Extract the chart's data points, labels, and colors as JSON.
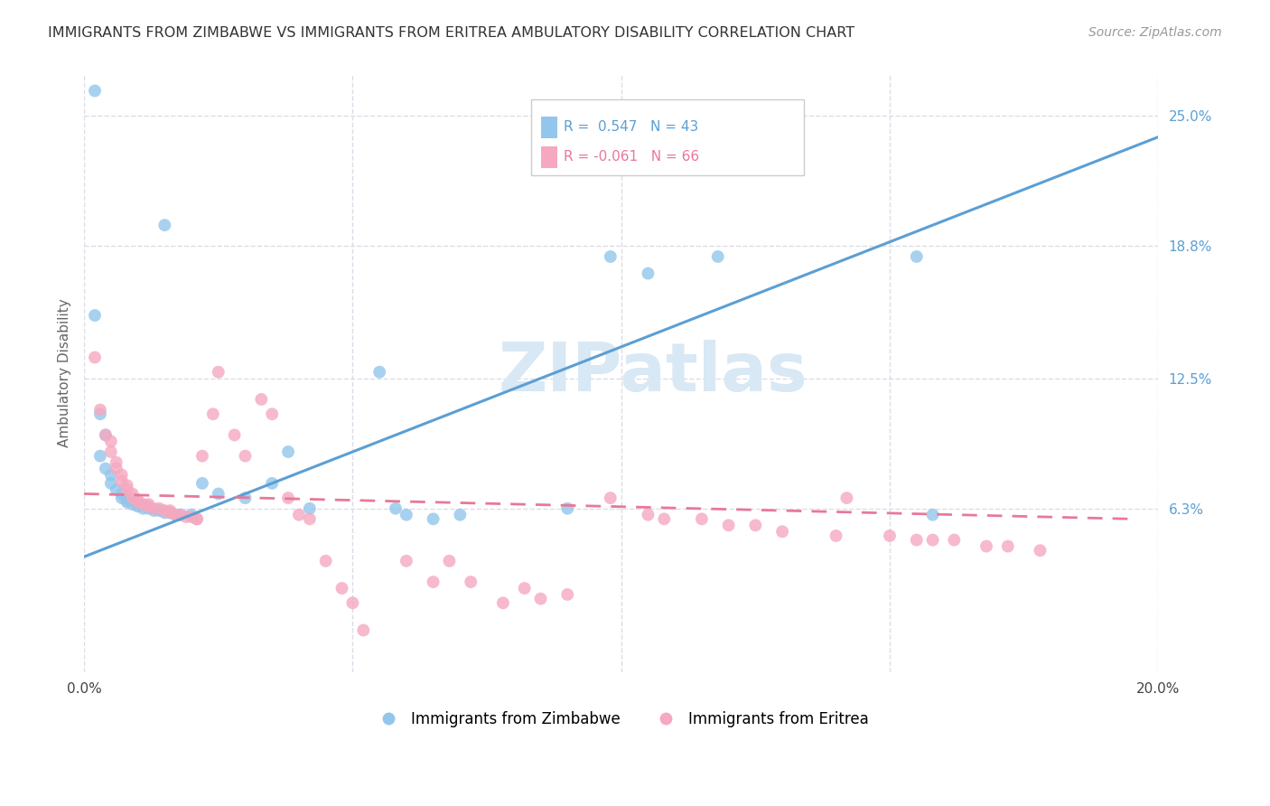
{
  "title": "IMMIGRANTS FROM ZIMBABWE VS IMMIGRANTS FROM ERITREA AMBULATORY DISABILITY CORRELATION CHART",
  "source": "Source: ZipAtlas.com",
  "ylabel": "Ambulatory Disability",
  "xlim": [
    0.0,
    0.2
  ],
  "ylim": [
    -0.015,
    0.27
  ],
  "xtick_positions": [
    0.0,
    0.05,
    0.1,
    0.15,
    0.2
  ],
  "xticklabels": [
    "0.0%",
    "",
    "",
    "",
    "20.0%"
  ],
  "yticks_right": [
    0.063,
    0.125,
    0.188,
    0.25
  ],
  "ytick_labels_right": [
    "6.3%",
    "12.5%",
    "18.8%",
    "25.0%"
  ],
  "color_zimbabwe": "#93C6EC",
  "color_eritrea": "#F5A8C0",
  "color_line_zimbabwe": "#5B9FD4",
  "color_line_eritrea": "#E87898",
  "watermark": "ZIPatlas",
  "watermark_color": "#D8E8F4",
  "background_color": "#ffffff",
  "grid_color": "#DCDCE8",
  "zimbabwe_scatter": [
    [
      0.002,
      0.262
    ],
    [
      0.015,
      0.198
    ],
    [
      0.002,
      0.155
    ],
    [
      0.003,
      0.108
    ],
    [
      0.004,
      0.098
    ],
    [
      0.003,
      0.088
    ],
    [
      0.004,
      0.082
    ],
    [
      0.005,
      0.079
    ],
    [
      0.005,
      0.075
    ],
    [
      0.006,
      0.072
    ],
    [
      0.007,
      0.07
    ],
    [
      0.007,
      0.068
    ],
    [
      0.008,
      0.067
    ],
    [
      0.008,
      0.066
    ],
    [
      0.009,
      0.065
    ],
    [
      0.01,
      0.065
    ],
    [
      0.01,
      0.064
    ],
    [
      0.011,
      0.063
    ],
    [
      0.012,
      0.063
    ],
    [
      0.013,
      0.062
    ],
    [
      0.014,
      0.062
    ],
    [
      0.015,
      0.061
    ],
    [
      0.016,
      0.061
    ],
    [
      0.017,
      0.06
    ],
    [
      0.018,
      0.06
    ],
    [
      0.02,
      0.06
    ],
    [
      0.022,
      0.075
    ],
    [
      0.025,
      0.07
    ],
    [
      0.03,
      0.068
    ],
    [
      0.035,
      0.075
    ],
    [
      0.038,
      0.09
    ],
    [
      0.042,
      0.063
    ],
    [
      0.055,
      0.128
    ],
    [
      0.058,
      0.063
    ],
    [
      0.06,
      0.06
    ],
    [
      0.065,
      0.058
    ],
    [
      0.07,
      0.06
    ],
    [
      0.09,
      0.063
    ],
    [
      0.098,
      0.183
    ],
    [
      0.105,
      0.175
    ],
    [
      0.118,
      0.183
    ],
    [
      0.155,
      0.183
    ],
    [
      0.158,
      0.06
    ]
  ],
  "eritrea_scatter": [
    [
      0.002,
      0.135
    ],
    [
      0.003,
      0.11
    ],
    [
      0.004,
      0.098
    ],
    [
      0.005,
      0.095
    ],
    [
      0.005,
      0.09
    ],
    [
      0.006,
      0.085
    ],
    [
      0.006,
      0.082
    ],
    [
      0.007,
      0.079
    ],
    [
      0.007,
      0.076
    ],
    [
      0.008,
      0.074
    ],
    [
      0.008,
      0.072
    ],
    [
      0.009,
      0.07
    ],
    [
      0.009,
      0.068
    ],
    [
      0.01,
      0.067
    ],
    [
      0.01,
      0.066
    ],
    [
      0.011,
      0.065
    ],
    [
      0.012,
      0.065
    ],
    [
      0.012,
      0.064
    ],
    [
      0.013,
      0.063
    ],
    [
      0.014,
      0.063
    ],
    [
      0.015,
      0.062
    ],
    [
      0.016,
      0.062
    ],
    [
      0.016,
      0.061
    ],
    [
      0.017,
      0.06
    ],
    [
      0.018,
      0.06
    ],
    [
      0.019,
      0.059
    ],
    [
      0.02,
      0.059
    ],
    [
      0.021,
      0.058
    ],
    [
      0.021,
      0.058
    ],
    [
      0.022,
      0.088
    ],
    [
      0.024,
      0.108
    ],
    [
      0.025,
      0.128
    ],
    [
      0.028,
      0.098
    ],
    [
      0.03,
      0.088
    ],
    [
      0.033,
      0.115
    ],
    [
      0.035,
      0.108
    ],
    [
      0.038,
      0.068
    ],
    [
      0.04,
      0.06
    ],
    [
      0.042,
      0.058
    ],
    [
      0.045,
      0.038
    ],
    [
      0.048,
      0.025
    ],
    [
      0.05,
      0.018
    ],
    [
      0.052,
      0.005
    ],
    [
      0.06,
      0.038
    ],
    [
      0.065,
      0.028
    ],
    [
      0.068,
      0.038
    ],
    [
      0.072,
      0.028
    ],
    [
      0.078,
      0.018
    ],
    [
      0.082,
      0.025
    ],
    [
      0.085,
      0.02
    ],
    [
      0.09,
      0.022
    ],
    [
      0.098,
      0.068
    ],
    [
      0.105,
      0.06
    ],
    [
      0.108,
      0.058
    ],
    [
      0.115,
      0.058
    ],
    [
      0.12,
      0.055
    ],
    [
      0.125,
      0.055
    ],
    [
      0.13,
      0.052
    ],
    [
      0.14,
      0.05
    ],
    [
      0.142,
      0.068
    ],
    [
      0.15,
      0.05
    ],
    [
      0.155,
      0.048
    ],
    [
      0.158,
      0.048
    ],
    [
      0.162,
      0.048
    ],
    [
      0.168,
      0.045
    ],
    [
      0.172,
      0.045
    ],
    [
      0.178,
      0.043
    ]
  ],
  "zim_line_x": [
    0.0,
    0.2
  ],
  "zim_line_y": [
    0.04,
    0.24
  ],
  "eri_line_x": [
    0.0,
    0.195
  ],
  "eri_line_y": [
    0.07,
    0.058
  ]
}
